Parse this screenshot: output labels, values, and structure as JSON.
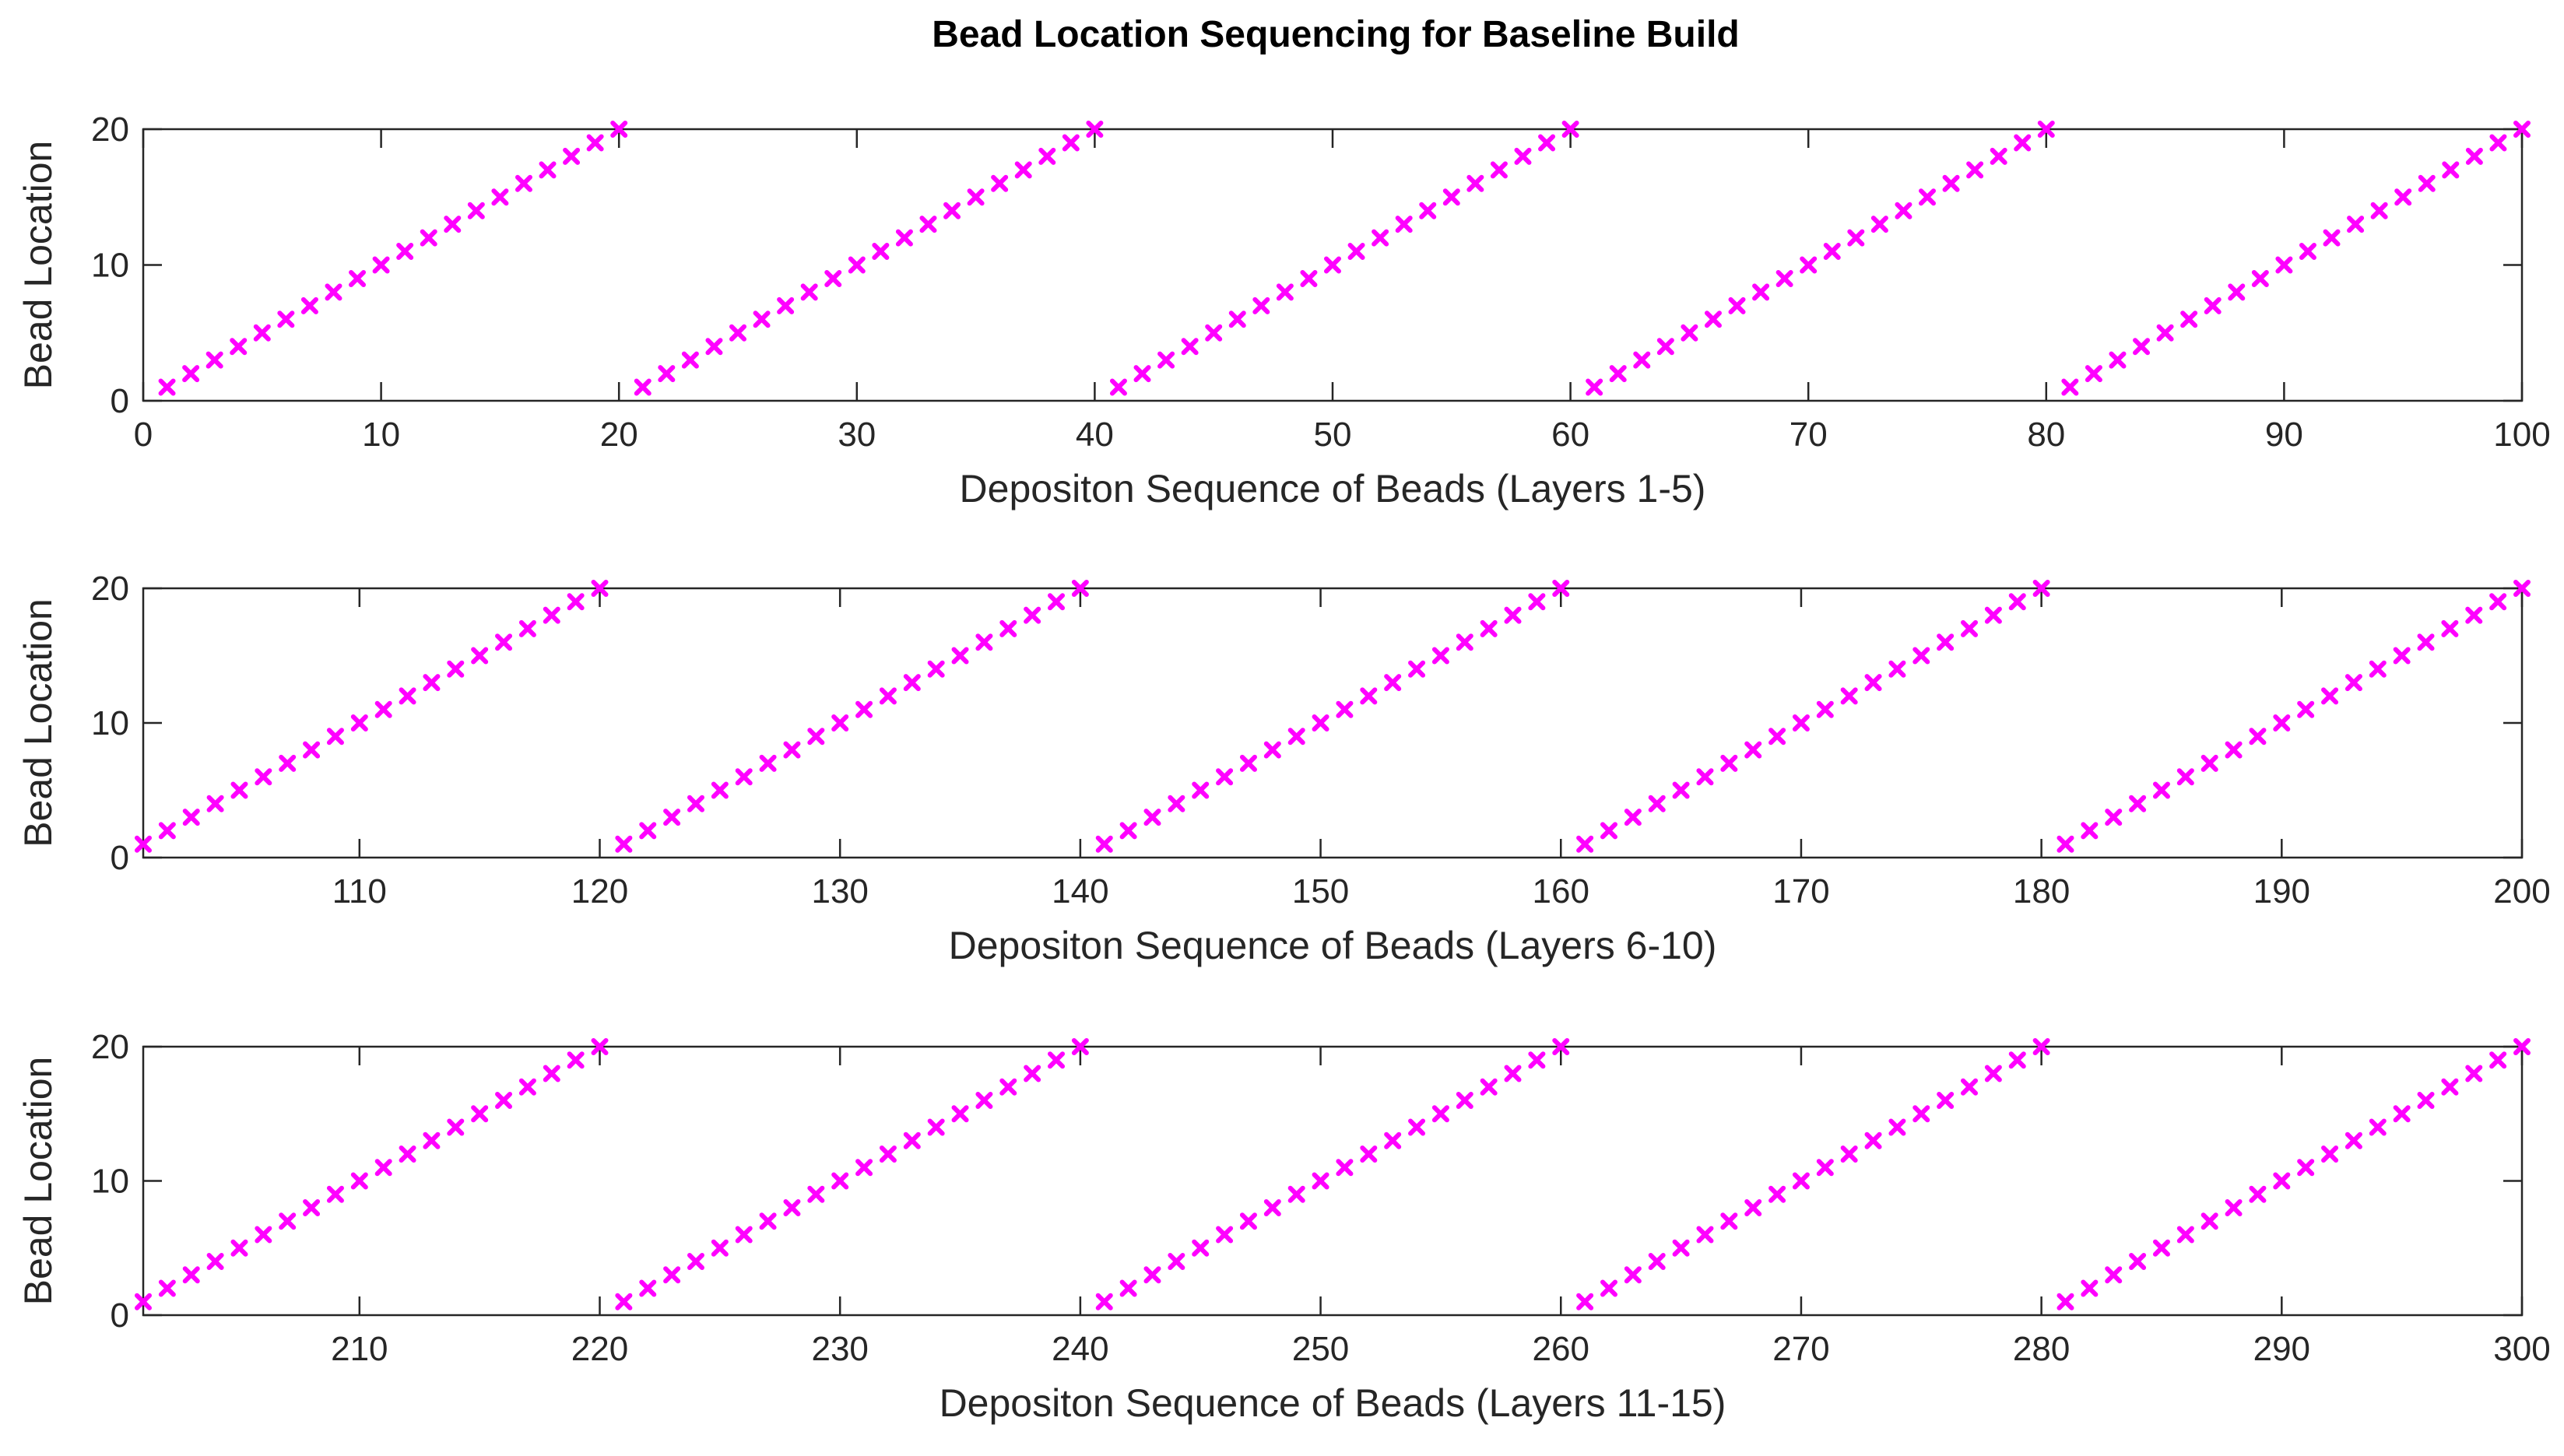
{
  "figure": {
    "title": "Bead Location Sequencing for Baseline Build"
  },
  "marker_color": "#ff00ff",
  "chart_data": [
    {
      "type": "scatter",
      "marker": "x",
      "xlabel": "Depositon Sequence of Beads (Layers 1-5)",
      "ylabel": "Bead Location",
      "xlim": [
        0,
        100
      ],
      "ylim": [
        0,
        20
      ],
      "xticks": [
        0,
        10,
        20,
        30,
        40,
        50,
        60,
        70,
        80,
        90,
        100
      ],
      "yticks": [
        0,
        10,
        20
      ],
      "grid": false,
      "series": [
        {
          "x_start": 1,
          "x_end": 100,
          "pattern": "y cycles 1 through 20 (repeating every 20 beads)",
          "x": [
            1,
            2,
            3,
            4,
            5,
            6,
            7,
            8,
            9,
            10,
            11,
            12,
            13,
            14,
            15,
            16,
            17,
            18,
            19,
            20,
            21,
            22,
            23,
            24,
            25,
            26,
            27,
            28,
            29,
            30,
            31,
            32,
            33,
            34,
            35,
            36,
            37,
            38,
            39,
            40,
            41,
            42,
            43,
            44,
            45,
            46,
            47,
            48,
            49,
            50,
            51,
            52,
            53,
            54,
            55,
            56,
            57,
            58,
            59,
            60,
            61,
            62,
            63,
            64,
            65,
            66,
            67,
            68,
            69,
            70,
            71,
            72,
            73,
            74,
            75,
            76,
            77,
            78,
            79,
            80,
            81,
            82,
            83,
            84,
            85,
            86,
            87,
            88,
            89,
            90,
            91,
            92,
            93,
            94,
            95,
            96,
            97,
            98,
            99,
            100
          ],
          "y": [
            1,
            2,
            3,
            4,
            5,
            6,
            7,
            8,
            9,
            10,
            11,
            12,
            13,
            14,
            15,
            16,
            17,
            18,
            19,
            20,
            1,
            2,
            3,
            4,
            5,
            6,
            7,
            8,
            9,
            10,
            11,
            12,
            13,
            14,
            15,
            16,
            17,
            18,
            19,
            20,
            1,
            2,
            3,
            4,
            5,
            6,
            7,
            8,
            9,
            10,
            11,
            12,
            13,
            14,
            15,
            16,
            17,
            18,
            19,
            20,
            1,
            2,
            3,
            4,
            5,
            6,
            7,
            8,
            9,
            10,
            11,
            12,
            13,
            14,
            15,
            16,
            17,
            18,
            19,
            20,
            1,
            2,
            3,
            4,
            5,
            6,
            7,
            8,
            9,
            10,
            11,
            12,
            13,
            14,
            15,
            16,
            17,
            18,
            19,
            20
          ]
        }
      ]
    },
    {
      "type": "scatter",
      "marker": "x",
      "xlabel": "Depositon Sequence of Beads (Layers 6-10)",
      "ylabel": "Bead Location",
      "xlim": [
        101,
        200
      ],
      "ylim": [
        0,
        20
      ],
      "xticks": [
        110,
        120,
        130,
        140,
        150,
        160,
        170,
        180,
        190,
        200
      ],
      "yticks": [
        0,
        10,
        20
      ],
      "grid": false,
      "series": [
        {
          "x_start": 101,
          "x_end": 200,
          "pattern": "y cycles 1 through 20 (repeating every 20 beads)",
          "x": [
            101,
            102,
            103,
            104,
            105,
            106,
            107,
            108,
            109,
            110,
            111,
            112,
            113,
            114,
            115,
            116,
            117,
            118,
            119,
            120,
            121,
            122,
            123,
            124,
            125,
            126,
            127,
            128,
            129,
            130,
            131,
            132,
            133,
            134,
            135,
            136,
            137,
            138,
            139,
            140,
            141,
            142,
            143,
            144,
            145,
            146,
            147,
            148,
            149,
            150,
            151,
            152,
            153,
            154,
            155,
            156,
            157,
            158,
            159,
            160,
            161,
            162,
            163,
            164,
            165,
            166,
            167,
            168,
            169,
            170,
            171,
            172,
            173,
            174,
            175,
            176,
            177,
            178,
            179,
            180,
            181,
            182,
            183,
            184,
            185,
            186,
            187,
            188,
            189,
            190,
            191,
            192,
            193,
            194,
            195,
            196,
            197,
            198,
            199,
            200
          ],
          "y": [
            1,
            2,
            3,
            4,
            5,
            6,
            7,
            8,
            9,
            10,
            11,
            12,
            13,
            14,
            15,
            16,
            17,
            18,
            19,
            20,
            1,
            2,
            3,
            4,
            5,
            6,
            7,
            8,
            9,
            10,
            11,
            12,
            13,
            14,
            15,
            16,
            17,
            18,
            19,
            20,
            1,
            2,
            3,
            4,
            5,
            6,
            7,
            8,
            9,
            10,
            11,
            12,
            13,
            14,
            15,
            16,
            17,
            18,
            19,
            20,
            1,
            2,
            3,
            4,
            5,
            6,
            7,
            8,
            9,
            10,
            11,
            12,
            13,
            14,
            15,
            16,
            17,
            18,
            19,
            20,
            1,
            2,
            3,
            4,
            5,
            6,
            7,
            8,
            9,
            10,
            11,
            12,
            13,
            14,
            15,
            16,
            17,
            18,
            19,
            20
          ]
        }
      ]
    },
    {
      "type": "scatter",
      "marker": "x",
      "xlabel": "Depositon Sequence of Beads (Layers 11-15)",
      "ylabel": "Bead Location",
      "xlim": [
        201,
        300
      ],
      "ylim": [
        0,
        20
      ],
      "xticks": [
        210,
        220,
        230,
        240,
        250,
        260,
        270,
        280,
        290,
        300
      ],
      "yticks": [
        0,
        10,
        20
      ],
      "grid": false,
      "series": [
        {
          "x_start": 201,
          "x_end": 300,
          "pattern": "y cycles 1 through 20 (repeating every 20 beads)",
          "x": [
            201,
            202,
            203,
            204,
            205,
            206,
            207,
            208,
            209,
            210,
            211,
            212,
            213,
            214,
            215,
            216,
            217,
            218,
            219,
            220,
            221,
            222,
            223,
            224,
            225,
            226,
            227,
            228,
            229,
            230,
            231,
            232,
            233,
            234,
            235,
            236,
            237,
            238,
            239,
            240,
            241,
            242,
            243,
            244,
            245,
            246,
            247,
            248,
            249,
            250,
            251,
            252,
            253,
            254,
            255,
            256,
            257,
            258,
            259,
            260,
            261,
            262,
            263,
            264,
            265,
            266,
            267,
            268,
            269,
            270,
            271,
            272,
            273,
            274,
            275,
            276,
            277,
            278,
            279,
            280,
            281,
            282,
            283,
            284,
            285,
            286,
            287,
            288,
            289,
            290,
            291,
            292,
            293,
            294,
            295,
            296,
            297,
            298,
            299,
            300
          ],
          "y": [
            1,
            2,
            3,
            4,
            5,
            6,
            7,
            8,
            9,
            10,
            11,
            12,
            13,
            14,
            15,
            16,
            17,
            18,
            19,
            20,
            1,
            2,
            3,
            4,
            5,
            6,
            7,
            8,
            9,
            10,
            11,
            12,
            13,
            14,
            15,
            16,
            17,
            18,
            19,
            20,
            1,
            2,
            3,
            4,
            5,
            6,
            7,
            8,
            9,
            10,
            11,
            12,
            13,
            14,
            15,
            16,
            17,
            18,
            19,
            20,
            1,
            2,
            3,
            4,
            5,
            6,
            7,
            8,
            9,
            10,
            11,
            12,
            13,
            14,
            15,
            16,
            17,
            18,
            19,
            20,
            1,
            2,
            3,
            4,
            5,
            6,
            7,
            8,
            9,
            10,
            11,
            12,
            13,
            14,
            15,
            16,
            17,
            18,
            19,
            20
          ]
        }
      ]
    }
  ]
}
